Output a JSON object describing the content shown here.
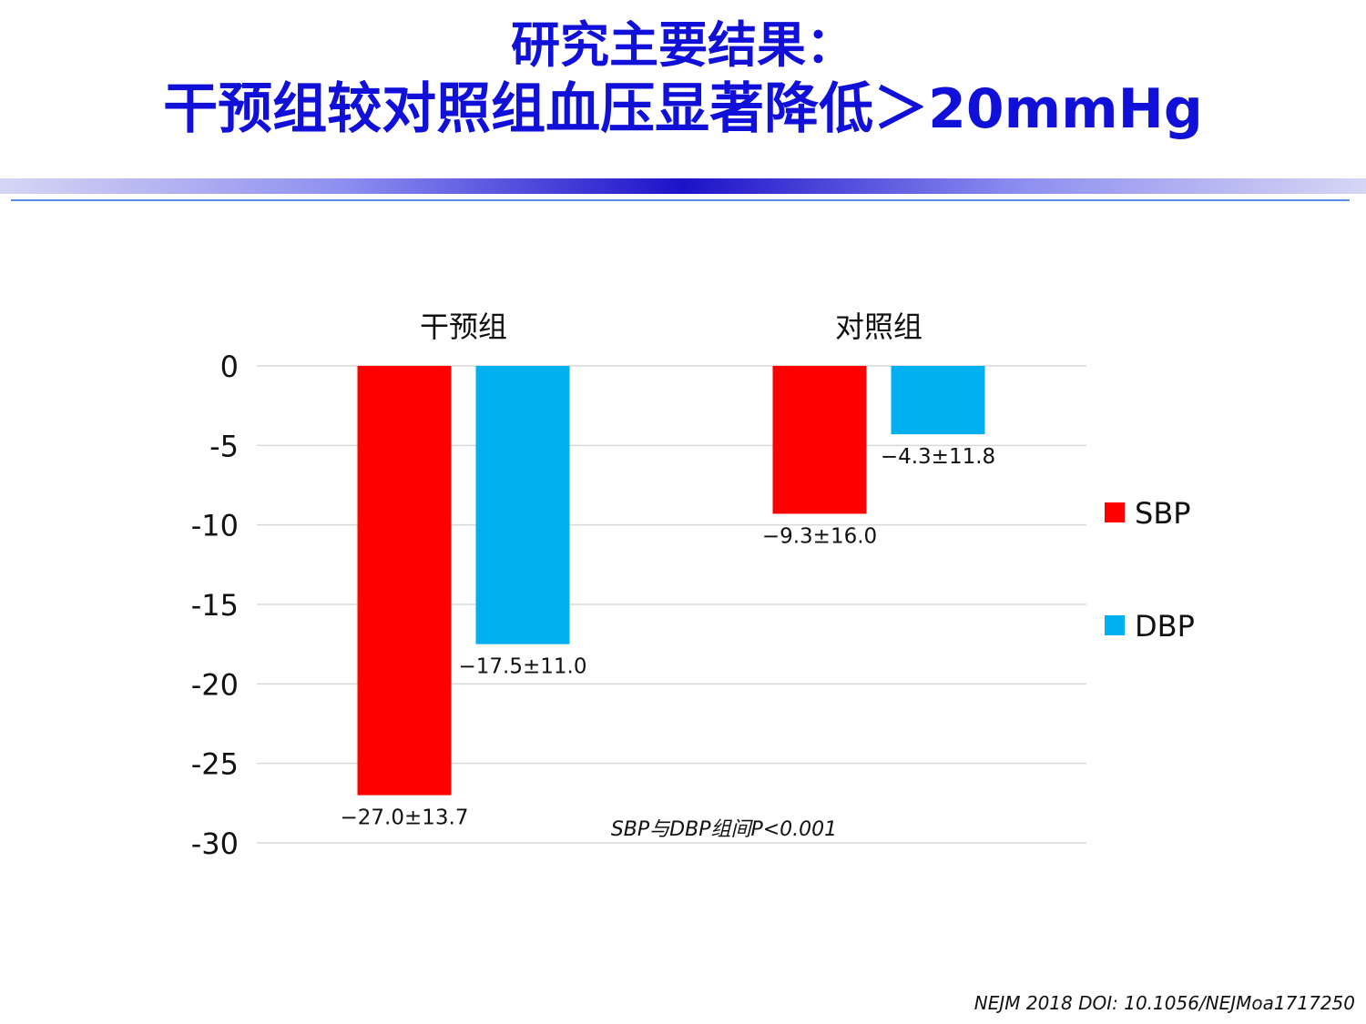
{
  "slide": {
    "title_line1": "研究主要结果：",
    "title_line2": "干预组较对照组血压显著降低＞20mmHg",
    "citation": "NEJM 2018 DOI: 10.1056/NEJMoa1717250"
  },
  "colors": {
    "title": "#1010d8",
    "sbp": "#ff0000",
    "dbp": "#00b0f0",
    "grid": "#d9d9d9"
  },
  "chart_data": {
    "type": "bar",
    "title": "",
    "xlabel": "",
    "ylabel": "",
    "categories": [
      "干预组",
      "对照组"
    ],
    "series": [
      {
        "name": "SBP",
        "values": [
          -27.0,
          -9.3
        ],
        "labels": [
          "−27.0±13.7",
          "−9.3±16.0"
        ]
      },
      {
        "name": "DBP",
        "values": [
          -17.5,
          -4.3
        ],
        "labels": [
          "−17.5±11.0",
          "−4.3±11.8"
        ]
      }
    ],
    "ylim": [
      -30,
      0
    ],
    "yticks": [
      0,
      -5,
      -10,
      -15,
      -20,
      -25,
      -30
    ],
    "ytick_labels": [
      "0",
      "-5",
      "-10",
      "-15",
      "-20",
      "-25",
      "-30"
    ],
    "grid": true,
    "legend": [
      "SBP",
      "DBP"
    ],
    "legend_position": "right",
    "x_axis_position": "top",
    "annotation": "SBP与DBP组间P<0.001"
  }
}
